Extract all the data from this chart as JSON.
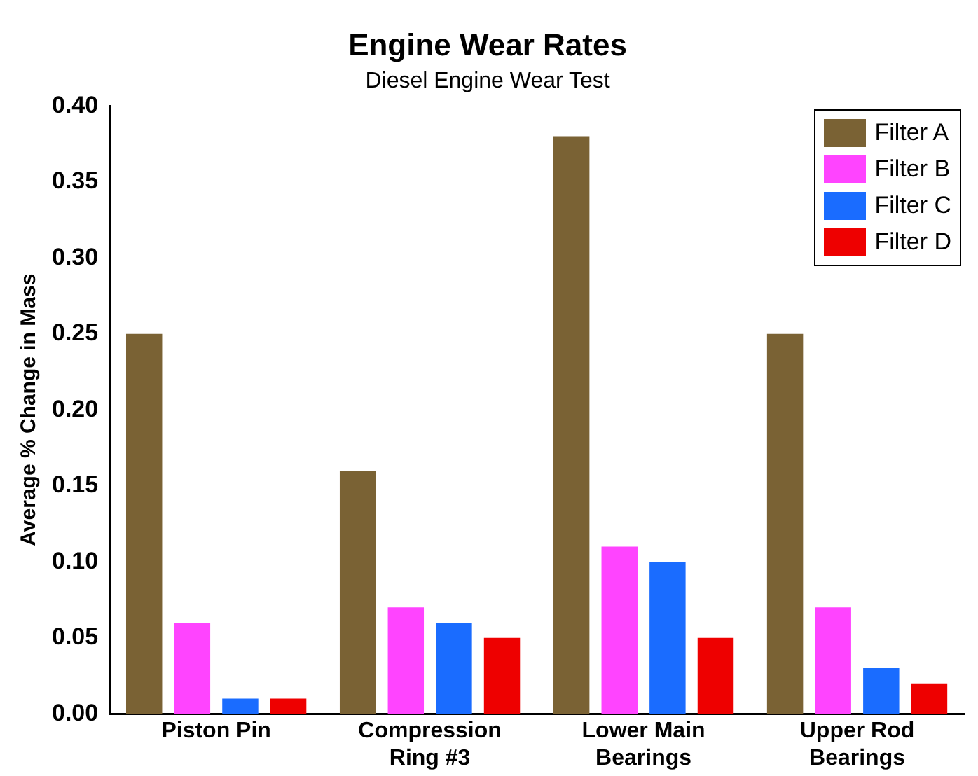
{
  "chart_data": {
    "type": "bar",
    "title": "Engine Wear Rates",
    "subtitle": "Diesel Engine Wear Test",
    "ylabel": "Average % Change in Mass",
    "categories": [
      "Piston Pin",
      "Compression Ring #3",
      "Lower Main Bearings",
      "Upper Rod Bearings"
    ],
    "series": [
      {
        "name": "Filter A",
        "color": "#7a6234",
        "values": [
          0.25,
          0.16,
          0.38,
          0.25
        ]
      },
      {
        "name": "Filter B",
        "color": "#ff44ff",
        "values": [
          0.06,
          0.07,
          0.11,
          0.07
        ]
      },
      {
        "name": "Filter C",
        "color": "#1a6cff",
        "values": [
          0.01,
          0.06,
          0.1,
          0.03
        ]
      },
      {
        "name": "Filter D",
        "color": "#ee0000",
        "values": [
          0.01,
          0.05,
          0.05,
          0.02
        ]
      }
    ],
    "ylim": [
      0,
      0.4
    ],
    "yticks": [
      {
        "value": 0,
        "label": "0.00"
      },
      {
        "value": 0.05,
        "label": "0.05"
      },
      {
        "value": 0.1,
        "label": "0.10"
      },
      {
        "value": 0.15,
        "label": "0.15"
      },
      {
        "value": 0.2,
        "label": "0.20"
      },
      {
        "value": 0.25,
        "label": "0.25"
      },
      {
        "value": 0.3,
        "label": "0.30"
      },
      {
        "value": 0.35,
        "label": "0.35"
      },
      {
        "value": 0.4,
        "label": "0.40"
      }
    ],
    "grid": false,
    "legend": "top right"
  }
}
